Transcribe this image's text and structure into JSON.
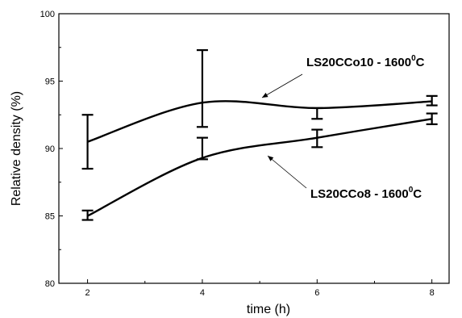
{
  "chart_data": {
    "type": "line",
    "title": "",
    "xlabel": "time (h)",
    "ylabel": "Relative density (%)",
    "xlim": [
      1.5,
      8.3
    ],
    "ylim": [
      80,
      100
    ],
    "x_ticks": [
      "2",
      "4",
      "6",
      "8"
    ],
    "y_ticks": [
      "80",
      "85",
      "90",
      "95",
      "100"
    ],
    "grid": false,
    "series": [
      {
        "name": "LS20CCo10 - 1600",
        "x": [
          2,
          4,
          6,
          8
        ],
        "y": [
          90.5,
          93.4,
          93.0,
          93.5
        ],
        "err_low": [
          88.5,
          91.6,
          92.2,
          93.2
        ],
        "err_high": [
          92.5,
          97.3,
          93.0,
          93.9
        ]
      },
      {
        "name": "LS20CCo8 - 1600",
        "x": [
          2,
          4,
          6,
          8
        ],
        "y": [
          85.0,
          89.3,
          90.8,
          92.2
        ],
        "err_low": [
          84.7,
          89.2,
          90.1,
          91.8
        ],
        "err_high": [
          85.4,
          90.8,
          91.4,
          92.6
        ]
      }
    ],
    "annotations": [
      {
        "series": 0,
        "text": "LS20CCo10 - 1600",
        "sup": "0",
        "unit": "C"
      },
      {
        "series": 1,
        "text": "LS20CCo8 - 1600",
        "sup": "0",
        "unit": "C"
      }
    ]
  }
}
